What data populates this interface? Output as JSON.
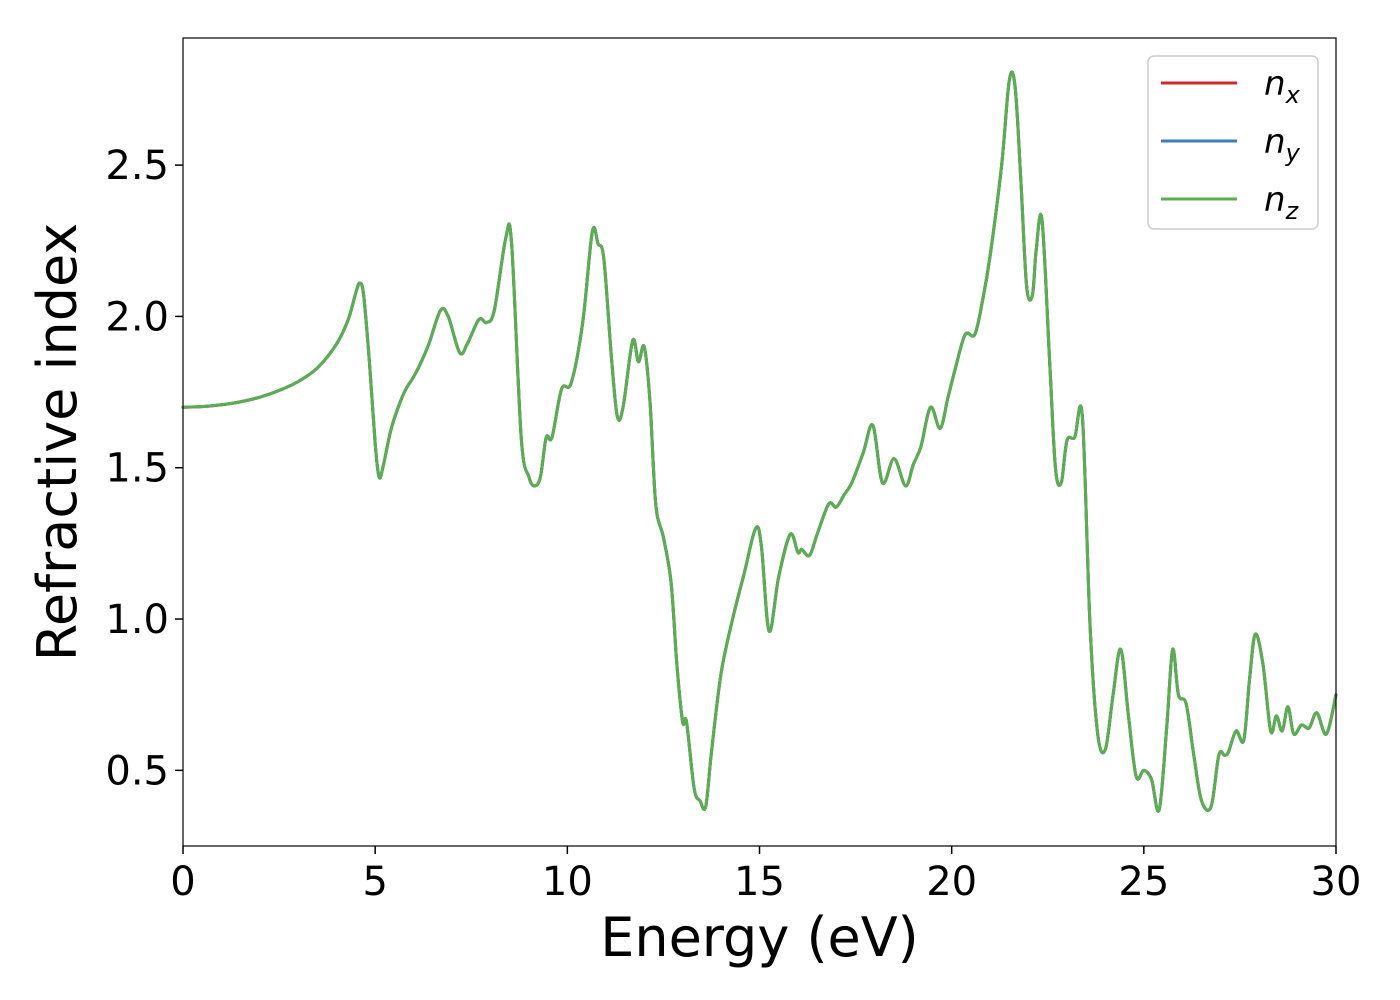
{
  "chart_data": {
    "type": "line",
    "title": "",
    "xlabel": "Energy (eV)",
    "ylabel": "Refractive index",
    "xlim": [
      0,
      30
    ],
    "ylim": [
      0.25,
      2.92
    ],
    "xticks": [
      0,
      5,
      10,
      15,
      20,
      25,
      30
    ],
    "xtick_labels": [
      "0",
      "5",
      "10",
      "15",
      "20",
      "25",
      "30"
    ],
    "yticks": [
      0.5,
      1.0,
      1.5,
      2.0,
      2.5
    ],
    "ytick_labels": [
      "0.5",
      "1.0",
      "1.5",
      "2.0",
      "2.5"
    ],
    "grid": false,
    "legend_position": "top-right",
    "series": [
      {
        "name": "n",
        "subscript": "x",
        "color": "#d62728"
      },
      {
        "name": "n",
        "subscript": "y",
        "color": "#3a7dbf"
      },
      {
        "name": "n",
        "subscript": "z",
        "color": "#5aae51"
      }
    ],
    "x": [
      0,
      0.5,
      1,
      1.5,
      2,
      2.5,
      3,
      3.5,
      4,
      4.3,
      4.5,
      4.6,
      4.7,
      4.85,
      5.0,
      5.1,
      5.2,
      5.4,
      5.6,
      5.8,
      6.0,
      6.2,
      6.4,
      6.7,
      6.9,
      7.2,
      7.4,
      7.7,
      7.9,
      8.1,
      8.4,
      8.55,
      8.8,
      9.0,
      9.15,
      9.3,
      9.45,
      9.6,
      9.85,
      10.1,
      10.4,
      10.65,
      10.8,
      10.95,
      11.15,
      11.3,
      11.45,
      11.7,
      11.85,
      12.0,
      12.15,
      12.3,
      12.5,
      12.7,
      12.85,
      13.0,
      13.1,
      13.3,
      13.45,
      13.6,
      13.75,
      14.0,
      14.3,
      14.6,
      14.9,
      15.05,
      15.25,
      15.5,
      15.8,
      16.0,
      16.1,
      16.3,
      16.5,
      16.8,
      17.0,
      17.2,
      17.4,
      17.7,
      17.95,
      18.2,
      18.5,
      18.8,
      19.0,
      19.2,
      19.45,
      19.7,
      19.9,
      20.1,
      20.35,
      20.6,
      20.8,
      21.0,
      21.3,
      21.5,
      21.65,
      21.8,
      21.95,
      22.1,
      22.2,
      22.35,
      22.55,
      22.7,
      22.85,
      23.0,
      23.2,
      23.4,
      23.6,
      23.8,
      24.0,
      24.2,
      24.4,
      24.6,
      24.8,
      25.0,
      25.2,
      25.4,
      25.6,
      25.75,
      25.9,
      26.1,
      26.3,
      26.5,
      26.75,
      26.95,
      27.1,
      27.2,
      27.4,
      27.6,
      27.75,
      27.9,
      28.1,
      28.3,
      28.45,
      28.6,
      28.75,
      28.9,
      29.1,
      29.3,
      29.5,
      29.75,
      30.0
    ],
    "values": [
      1.7,
      1.702,
      1.708,
      1.718,
      1.733,
      1.755,
      1.785,
      1.83,
      1.91,
      1.99,
      2.08,
      2.11,
      2.07,
      1.85,
      1.58,
      1.47,
      1.5,
      1.62,
      1.7,
      1.76,
      1.8,
      1.85,
      1.91,
      2.02,
      2.0,
      1.88,
      1.91,
      1.99,
      1.98,
      2.02,
      2.26,
      2.24,
      1.6,
      1.47,
      1.44,
      1.47,
      1.6,
      1.6,
      1.76,
      1.78,
      1.98,
      2.28,
      2.24,
      2.19,
      1.86,
      1.67,
      1.7,
      1.92,
      1.85,
      1.9,
      1.72,
      1.38,
      1.27,
      1.12,
      0.85,
      0.66,
      0.66,
      0.44,
      0.4,
      0.38,
      0.56,
      0.82,
      1.0,
      1.15,
      1.3,
      1.24,
      0.96,
      1.14,
      1.28,
      1.22,
      1.23,
      1.21,
      1.28,
      1.38,
      1.37,
      1.41,
      1.45,
      1.55,
      1.64,
      1.45,
      1.53,
      1.44,
      1.51,
      1.57,
      1.7,
      1.63,
      1.73,
      1.83,
      1.94,
      1.94,
      2.05,
      2.2,
      2.5,
      2.78,
      2.76,
      2.45,
      2.1,
      2.07,
      2.22,
      2.32,
      1.85,
      1.5,
      1.45,
      1.59,
      1.6,
      1.67,
      0.98,
      0.62,
      0.57,
      0.75,
      0.9,
      0.68,
      0.48,
      0.5,
      0.47,
      0.37,
      0.65,
      0.9,
      0.75,
      0.72,
      0.55,
      0.4,
      0.38,
      0.55,
      0.55,
      0.56,
      0.63,
      0.6,
      0.8,
      0.95,
      0.85,
      0.63,
      0.68,
      0.63,
      0.71,
      0.62,
      0.65,
      0.64,
      0.69,
      0.62,
      0.75
    ]
  }
}
